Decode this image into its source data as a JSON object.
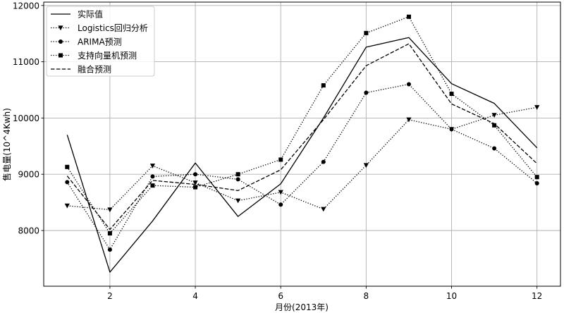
{
  "chart_data": {
    "type": "line",
    "title": "",
    "xlabel": "月份(2013年)",
    "ylabel": "售电量(10^4Kwh)",
    "x": [
      1,
      2,
      3,
      4,
      5,
      6,
      7,
      8,
      9,
      10,
      11,
      12
    ],
    "xlim": [
      0.45,
      12.55
    ],
    "ylim": [
      7010,
      12060
    ],
    "xticks": [
      2,
      4,
      6,
      8,
      10,
      12
    ],
    "yticks": [
      8000,
      9000,
      10000,
      11000,
      12000
    ],
    "grid": true,
    "grid_color": "#b0b0b0",
    "legend_position": "upper-left",
    "series": [
      {
        "name": "实际值",
        "line_style": "solid",
        "marker": "none",
        "color": "#000000",
        "values": [
          9700,
          7260,
          8170,
          9200,
          8250,
          8830,
          10000,
          11260,
          11430,
          10610,
          10260,
          9470
        ]
      },
      {
        "name": "Logistics回归分析",
        "line_style": "dotted",
        "marker": "triangle-down",
        "color": "#000000",
        "values": [
          8440,
          8370,
          9150,
          8850,
          8530,
          8680,
          8380,
          9160,
          9970,
          9800,
          10050,
          10190
        ]
      },
      {
        "name": "ARIMA预测",
        "line_style": "dotted",
        "marker": "circle",
        "color": "#000000",
        "values": [
          8860,
          7660,
          8960,
          9000,
          8910,
          8460,
          9220,
          10450,
          10600,
          9800,
          9460,
          8840
        ]
      },
      {
        "name": "支持向量机预测",
        "line_style": "dotted",
        "marker": "square",
        "color": "#000000",
        "values": [
          9130,
          7950,
          8800,
          8770,
          9000,
          9260,
          10580,
          11510,
          11800,
          10430,
          9870,
          8950
        ]
      },
      {
        "name": "融合预测",
        "line_style": "dashed",
        "marker": "none",
        "color": "#000000",
        "values": [
          8970,
          8020,
          8890,
          8820,
          8710,
          9080,
          9970,
          10930,
          11320,
          10250,
          9900,
          9190
        ]
      }
    ]
  }
}
